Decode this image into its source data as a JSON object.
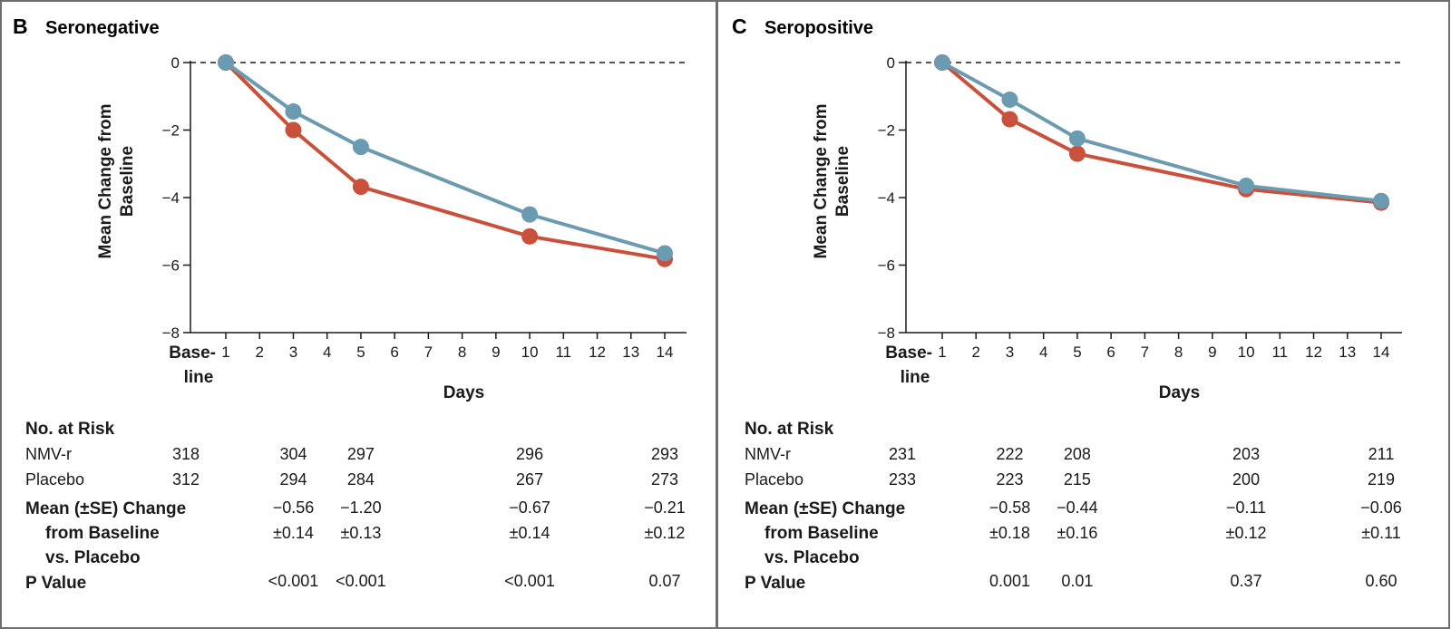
{
  "colors": {
    "nmvr": "#6b9bb0",
    "placebo": "#c9503a",
    "border": "#6e6e6e",
    "axis": "#1a1a1a"
  },
  "chart_data": [
    {
      "panel": "B",
      "title": "Seronegative",
      "type": "line",
      "ylabel": "Mean Change from Baseline",
      "xlabel": "Days",
      "ylim": [
        -8,
        0
      ],
      "yticks": [
        0,
        -2,
        -4,
        -6,
        -8
      ],
      "ytick_labels": [
        "0",
        "−2",
        "−4",
        "−6",
        "−8"
      ],
      "xticks": [
        1,
        2,
        3,
        4,
        5,
        6,
        7,
        8,
        9,
        10,
        11,
        12,
        13,
        14
      ],
      "baseline_label_1": "Base-",
      "baseline_label_2": "line",
      "series": [
        {
          "key": "nmvr",
          "x": [
            1,
            3,
            5,
            10,
            14
          ],
          "values": [
            0,
            -1.45,
            -2.5,
            -4.5,
            -5.65
          ]
        },
        {
          "key": "placebo",
          "x": [
            1,
            3,
            5,
            10,
            14
          ],
          "values": [
            0,
            -2.0,
            -3.68,
            -5.15,
            -5.82
          ]
        }
      ],
      "risk_table": {
        "header": "No. at Risk",
        "rows": [
          {
            "label": "NMV-r",
            "values": [
              "318",
              "304",
              "297",
              "296",
              "293"
            ]
          },
          {
            "label": "Placebo",
            "values": [
              "312",
              "294",
              "284",
              "267",
              "273"
            ]
          }
        ],
        "mean_label_1": "Mean (±SE) Change",
        "mean_label_2": "from Baseline",
        "mean_label_3": "vs. Placebo",
        "mean_values": [
          "−0.56",
          "−1.20",
          "−0.67",
          "−0.21"
        ],
        "se_values": [
          "±0.14",
          "±0.13",
          "±0.14",
          "±0.12"
        ],
        "p_label": "P Value",
        "p_values": [
          "<0.001",
          "<0.001",
          "<0.001",
          "0.07"
        ]
      }
    },
    {
      "panel": "C",
      "title": "Seropositive",
      "type": "line",
      "ylabel": "Mean Change from Baseline",
      "xlabel": "Days",
      "ylim": [
        -8,
        0
      ],
      "yticks": [
        0,
        -2,
        -4,
        -6,
        -8
      ],
      "ytick_labels": [
        "0",
        "−2",
        "−4",
        "−6",
        "−8"
      ],
      "xticks": [
        1,
        2,
        3,
        4,
        5,
        6,
        7,
        8,
        9,
        10,
        11,
        12,
        13,
        14
      ],
      "baseline_label_1": "Base-",
      "baseline_label_2": "line",
      "series": [
        {
          "key": "nmvr",
          "x": [
            1,
            3,
            5,
            10,
            14
          ],
          "values": [
            0,
            -1.1,
            -2.25,
            -3.65,
            -4.1
          ]
        },
        {
          "key": "placebo",
          "x": [
            1,
            3,
            5,
            10,
            14
          ],
          "values": [
            0,
            -1.68,
            -2.7,
            -3.75,
            -4.15
          ]
        }
      ],
      "risk_table": {
        "header": "No. at Risk",
        "rows": [
          {
            "label": "NMV-r",
            "values": [
              "231",
              "222",
              "208",
              "203",
              "211"
            ]
          },
          {
            "label": "Placebo",
            "values": [
              "233",
              "223",
              "215",
              "200",
              "219"
            ]
          }
        ],
        "mean_label_1": "Mean (±SE) Change",
        "mean_label_2": "from Baseline",
        "mean_label_3": "vs. Placebo",
        "mean_values": [
          "−0.58",
          "−0.44",
          "−0.11",
          "−0.06"
        ],
        "se_values": [
          "±0.18",
          "±0.16",
          "±0.12",
          "±0.11"
        ],
        "p_label": "P Value",
        "p_values": [
          "0.001",
          "0.01",
          "0.37",
          "0.60"
        ]
      }
    }
  ]
}
